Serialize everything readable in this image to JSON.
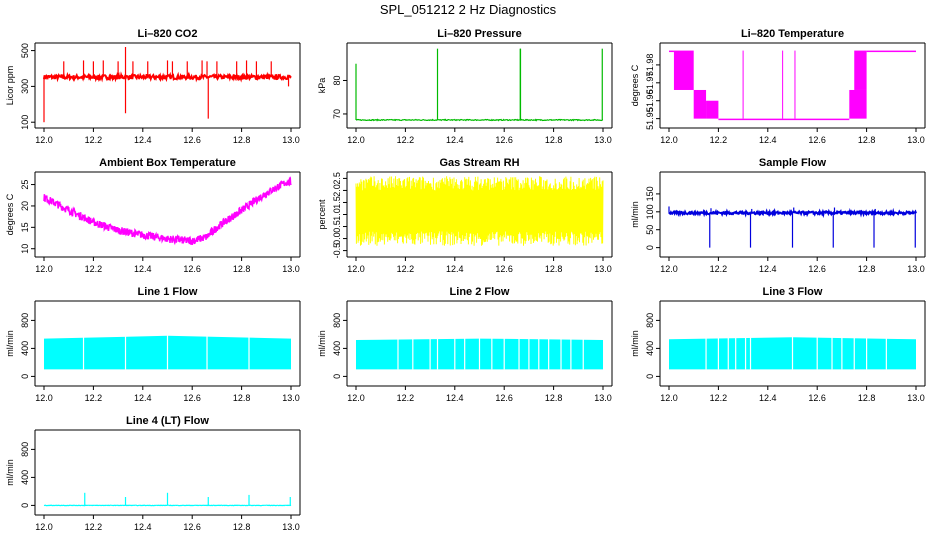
{
  "page": {
    "title": "SPL_051212  2 Hz Diagnostics"
  },
  "chart_data": [
    {
      "type": "line",
      "id": "co2",
      "title": "Li–820 CO2",
      "ylabel": "Licor ppm",
      "color": "#ff0000",
      "xlim": [
        12.0,
        13.0
      ],
      "ylim": [
        90,
        520
      ],
      "xticks": [
        "12.0",
        "12.2",
        "12.4",
        "12.6",
        "12.8",
        "13.0"
      ],
      "yticks": [
        {
          "value": 100,
          "label": "100"
        },
        {
          "value": 300,
          "label": "300"
        },
        {
          "value": 500,
          "label": "500"
        }
      ],
      "style": "band",
      "base": 352,
      "noise": 12,
      "spikes": [
        {
          "x": 12.08,
          "y": 440
        },
        {
          "x": 12.16,
          "y": 445
        },
        {
          "x": 12.2,
          "y": 440
        },
        {
          "x": 12.24,
          "y": 445
        },
        {
          "x": 12.3,
          "y": 440
        },
        {
          "x": 12.33,
          "y": 520
        },
        {
          "x": 12.33,
          "y": 150
        },
        {
          "x": 12.36,
          "y": 440
        },
        {
          "x": 12.42,
          "y": 440
        },
        {
          "x": 12.5,
          "y": 445
        },
        {
          "x": 12.52,
          "y": 440
        },
        {
          "x": 12.58,
          "y": 440
        },
        {
          "x": 12.64,
          "y": 445
        },
        {
          "x": 12.66,
          "y": 440
        },
        {
          "x": 12.665,
          "y": 120
        },
        {
          "x": 12.7,
          "y": 440
        },
        {
          "x": 12.78,
          "y": 440
        },
        {
          "x": 12.82,
          "y": 445
        },
        {
          "x": 12.86,
          "y": 440
        },
        {
          "x": 12.92,
          "y": 440
        },
        {
          "x": 12.99,
          "y": 300
        },
        {
          "x": 12.0,
          "y": 100
        }
      ]
    },
    {
      "type": "line",
      "id": "pressure",
      "title": "Li–820 Pressure",
      "ylabel": "kPa",
      "color": "#00bb00",
      "xlim": [
        12.0,
        13.0
      ],
      "ylim": [
        67,
        90
      ],
      "xticks": [
        "12.0",
        "12.2",
        "12.4",
        "12.6",
        "12.8",
        "13.0"
      ],
      "yticks": [
        {
          "value": 70,
          "label": "70"
        },
        {
          "value": 80,
          "label": "80"
        }
      ],
      "style": "line",
      "base": 68.2,
      "noise": 0.15,
      "spikes": [
        {
          "x": 12.0,
          "y": 85
        },
        {
          "x": 12.33,
          "y": 89.5
        },
        {
          "x": 12.665,
          "y": 89.5
        },
        {
          "x": 12.666,
          "y": 89.5
        },
        {
          "x": 12.997,
          "y": 89.5
        }
      ]
    },
    {
      "type": "line",
      "id": "temperature",
      "title": "Li–820 Temperature",
      "ylabel": "degrees C",
      "color": "#ff00ff",
      "xlim": [
        12.0,
        13.0
      ],
      "ylim": [
        51.947,
        51.99
      ],
      "xticks": [
        "12.0",
        "12.2",
        "12.4",
        "12.6",
        "12.8",
        "13.0"
      ],
      "yticks": [
        {
          "value": 51.95,
          "label": "51.95"
        },
        {
          "value": 51.96,
          "label": "51.96"
        },
        {
          "value": 51.97,
          "label": "51.97"
        },
        {
          "value": 51.98,
          "label": "51.98"
        }
      ],
      "style": "steps",
      "segments": [
        {
          "x0": 12.0,
          "x1": 12.02,
          "lo": 51.988,
          "hi": 51.988
        },
        {
          "x0": 12.02,
          "x1": 12.1,
          "lo": 51.966,
          "hi": 51.988
        },
        {
          "x0": 12.1,
          "x1": 12.15,
          "lo": 51.95,
          "hi": 51.966
        },
        {
          "x0": 12.15,
          "x1": 12.2,
          "lo": 51.95,
          "hi": 51.96
        },
        {
          "x0": 12.2,
          "x1": 12.73,
          "lo": 51.95,
          "hi": 51.95
        },
        {
          "x0": 12.73,
          "x1": 12.8,
          "lo": 51.95,
          "hi": 51.966
        },
        {
          "x0": 12.75,
          "x1": 12.8,
          "lo": 51.966,
          "hi": 51.988
        },
        {
          "x0": 12.8,
          "x1": 13.0,
          "lo": 51.988,
          "hi": 51.988
        }
      ]
    },
    {
      "type": "line",
      "id": "ambient",
      "title": "Ambient Box Temperature",
      "ylabel": "degrees C",
      "color": "#ff00ff",
      "xlim": [
        12.0,
        13.0
      ],
      "ylim": [
        9,
        27
      ],
      "xticks": [
        "12.0",
        "12.2",
        "12.4",
        "12.6",
        "12.8",
        "13.0"
      ],
      "yticks": [
        {
          "value": 10,
          "label": "10"
        },
        {
          "value": 15,
          "label": "15"
        },
        {
          "value": 20,
          "label": "20"
        },
        {
          "value": 25,
          "label": "25"
        }
      ],
      "style": "curve",
      "noise": 0.9,
      "curve": [
        [
          12.0,
          22
        ],
        [
          12.1,
          19
        ],
        [
          12.2,
          16.2
        ],
        [
          12.3,
          14.3
        ],
        [
          12.4,
          13.2
        ],
        [
          12.5,
          12.3
        ],
        [
          12.6,
          11.8
        ],
        [
          12.66,
          12.8
        ],
        [
          12.7,
          15
        ],
        [
          12.8,
          19
        ],
        [
          12.9,
          23
        ],
        [
          12.98,
          25.5
        ]
      ]
    },
    {
      "type": "line",
      "id": "rh",
      "title": "Gas Stream RH",
      "ylabel": "percent",
      "color": "#ffff00",
      "xlim": [
        12.0,
        13.0
      ],
      "ylim": [
        -0.6,
        2.6
      ],
      "xticks": [
        "12.0",
        "12.2",
        "12.4",
        "12.6",
        "12.8",
        "13.0"
      ],
      "yticks": [
        {
          "value": -0.5,
          "label": "-0.5"
        },
        {
          "value": 0.0,
          "label": "0.0"
        },
        {
          "value": 0.5,
          "label": "0.5"
        },
        {
          "value": 1.0,
          "label": "1.0"
        },
        {
          "value": 1.5,
          "label": "1.5"
        },
        {
          "value": 2.0,
          "label": "2.0"
        },
        {
          "value": 2.5,
          "label": "2.5"
        }
      ],
      "style": "fill",
      "lo": 0.0,
      "hi": 2.3,
      "jitter": 0.3
    },
    {
      "type": "line",
      "id": "sampleflow",
      "title": "Sample Flow",
      "ylabel": "ml/min",
      "color": "#0000dd",
      "xlim": [
        12.0,
        13.0
      ],
      "ylim": [
        -15,
        200
      ],
      "xticks": [
        "12.0",
        "12.2",
        "12.4",
        "12.6",
        "12.8",
        "13.0"
      ],
      "yticks": [
        {
          "value": 0,
          "label": "0"
        },
        {
          "value": 50,
          "label": "50"
        },
        {
          "value": 100,
          "label": "100"
        },
        {
          "value": 150,
          "label": "150"
        }
      ],
      "style": "band",
      "base": 97,
      "noise": 4,
      "spikes": [
        {
          "x": 12.0,
          "y": 115
        },
        {
          "x": 12.165,
          "y": 0
        },
        {
          "x": 12.17,
          "y": 110
        },
        {
          "x": 12.33,
          "y": 0
        },
        {
          "x": 12.335,
          "y": 108
        },
        {
          "x": 12.5,
          "y": 0
        },
        {
          "x": 12.505,
          "y": 112
        },
        {
          "x": 12.665,
          "y": 0
        },
        {
          "x": 12.67,
          "y": 112
        },
        {
          "x": 12.83,
          "y": 0
        },
        {
          "x": 12.835,
          "y": 108
        },
        {
          "x": 12.997,
          "y": 0
        }
      ]
    },
    {
      "type": "line",
      "id": "line1",
      "title": "Line 1 Flow",
      "ylabel": "ml/min",
      "color": "#00ffff",
      "xlim": [
        12.0,
        13.0
      ],
      "ylim": [
        -80,
        1020
      ],
      "xticks": [
        "12.0",
        "12.2",
        "12.4",
        "12.6",
        "12.8",
        "13.0"
      ],
      "yticks": [
        {
          "value": 0,
          "label": "0"
        },
        {
          "value": 400,
          "label": "400"
        },
        {
          "value": 800,
          "label": "800"
        }
      ],
      "style": "block",
      "lo": 100,
      "hi": 580,
      "taper": 40,
      "gaps": [
        12.16,
        12.33,
        12.5,
        12.66,
        12.83
      ]
    },
    {
      "type": "line",
      "id": "line2",
      "title": "Line 2 Flow",
      "ylabel": "ml/min",
      "color": "#00ffff",
      "xlim": [
        12.0,
        13.0
      ],
      "ylim": [
        -80,
        1020
      ],
      "xticks": [
        "12.0",
        "12.2",
        "12.4",
        "12.6",
        "12.8",
        "13.0"
      ],
      "yticks": [
        {
          "value": 0,
          "label": "0"
        },
        {
          "value": 400,
          "label": "400"
        },
        {
          "value": 800,
          "label": "800"
        }
      ],
      "style": "block",
      "lo": 100,
      "hi": 540,
      "taper": 20,
      "gaps": [
        12.17,
        12.23,
        12.3,
        12.33,
        12.4,
        12.44,
        12.5,
        12.55,
        12.6,
        12.66,
        12.7,
        12.74,
        12.78,
        12.83,
        12.87,
        12.92
      ]
    },
    {
      "type": "line",
      "id": "line3",
      "title": "Line 3 Flow",
      "ylabel": "ml/min",
      "color": "#00ffff",
      "xlim": [
        12.0,
        13.0
      ],
      "ylim": [
        -80,
        1020
      ],
      "xticks": [
        "12.0",
        "12.2",
        "12.4",
        "12.6",
        "12.8",
        "13.0"
      ],
      "yticks": [
        {
          "value": 0,
          "label": "0"
        },
        {
          "value": 400,
          "label": "400"
        },
        {
          "value": 800,
          "label": "800"
        }
      ],
      "style": "block",
      "lo": 100,
      "hi": 560,
      "taper": 30,
      "gaps": [
        12.15,
        12.2,
        12.24,
        12.27,
        12.31,
        12.33,
        12.5,
        12.6,
        12.66,
        12.7,
        12.75,
        12.8,
        12.88
      ]
    },
    {
      "type": "line",
      "id": "line4",
      "title": "Line 4 (LT) Flow",
      "ylabel": "ml/min",
      "color": "#00ffff",
      "xlim": [
        12.0,
        13.0
      ],
      "ylim": [
        -80,
        1020
      ],
      "xticks": [
        "12.0",
        "12.2",
        "12.4",
        "12.6",
        "12.8",
        "13.0"
      ],
      "yticks": [
        {
          "value": 0,
          "label": "0"
        },
        {
          "value": 400,
          "label": "400"
        },
        {
          "value": 800,
          "label": "800"
        }
      ],
      "style": "line",
      "base": 0,
      "noise": 3,
      "spikes": [
        {
          "x": 12.165,
          "y": 180
        },
        {
          "x": 12.33,
          "y": 120
        },
        {
          "x": 12.5,
          "y": 180
        },
        {
          "x": 12.665,
          "y": 120
        },
        {
          "x": 12.83,
          "y": 150
        },
        {
          "x": 12.997,
          "y": 120
        }
      ]
    }
  ]
}
